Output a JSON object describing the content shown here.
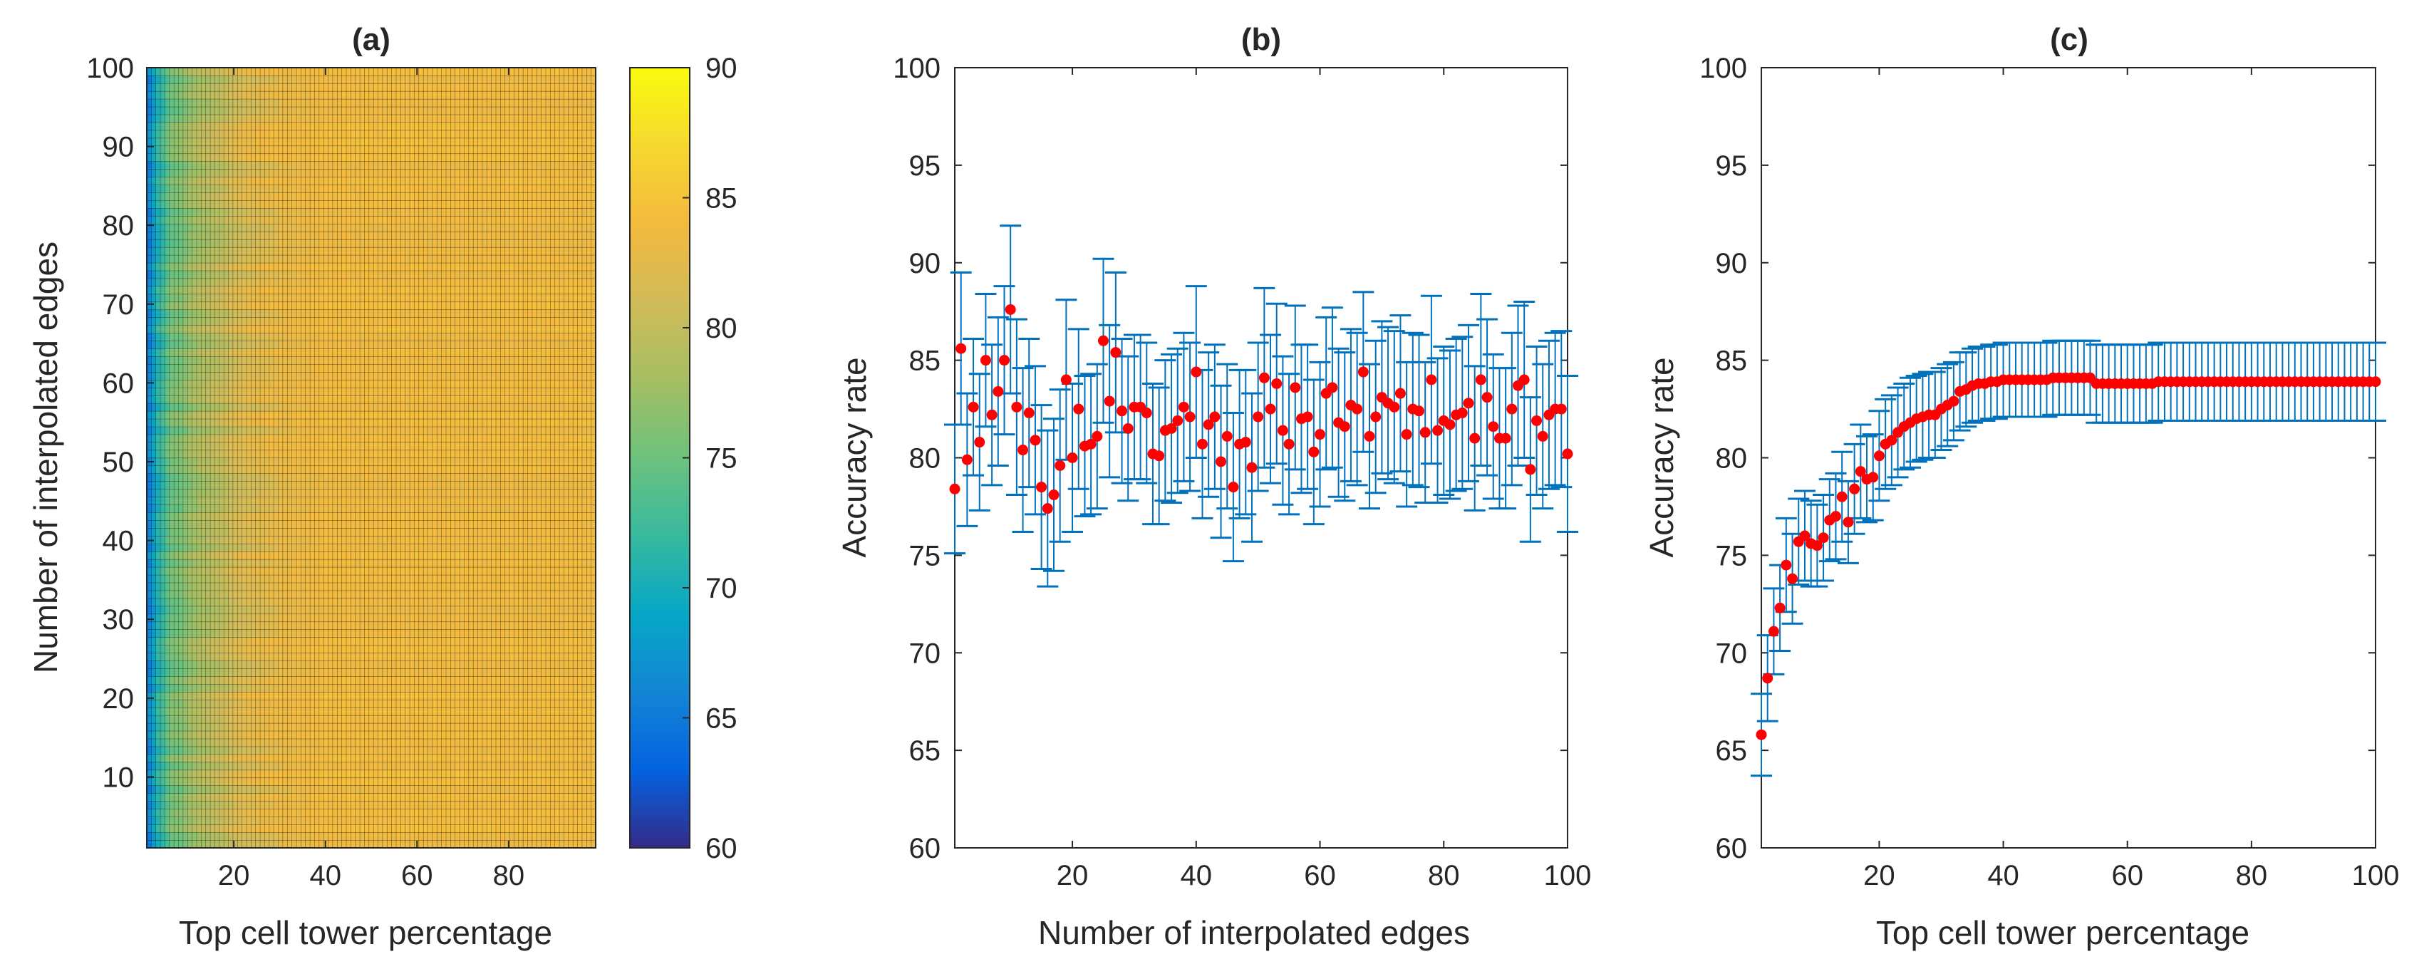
{
  "chart_data": [
    {
      "type": "heatmap",
      "title": "(a)",
      "xlabel": "Top cell tower percentage",
      "ylabel": "Number of interpolated edges",
      "xticks": [
        "20",
        "40",
        "60",
        "80"
      ],
      "yticks": [
        "10",
        "20",
        "30",
        "40",
        "50",
        "60",
        "70",
        "80",
        "90",
        "100"
      ],
      "xlim": [
        1,
        99
      ],
      "ylim": [
        1,
        100
      ],
      "colorbar": {
        "min": 60,
        "max": 90,
        "ticks": [
          "60",
          "65",
          "70",
          "75",
          "80",
          "85",
          "90"
        ],
        "colormap": "parula"
      },
      "x_profile": {
        "x": [
          1,
          2,
          3,
          4,
          5,
          6,
          8,
          10,
          12,
          15,
          18,
          20,
          25,
          30,
          35,
          40,
          50,
          99
        ],
        "value": [
          66,
          68.5,
          71,
          72,
          74,
          75.5,
          76,
          77.5,
          78.5,
          79.5,
          80.5,
          81.5,
          82.5,
          83.2,
          83.6,
          84,
          84,
          84
        ]
      }
    },
    {
      "type": "scatter",
      "title": "(b)",
      "xlabel": "Number of interpolated edges",
      "ylabel": "Accuracy rate",
      "xticks": [
        "20",
        "40",
        "60",
        "80",
        "100"
      ],
      "yticks": [
        "60",
        "65",
        "70",
        "75",
        "80",
        "85",
        "90",
        "95",
        "100"
      ],
      "xlim": [
        1,
        100
      ],
      "ylim": [
        60,
        100
      ],
      "error_bars": true,
      "marker_color": "#ff0000",
      "errorbar_color": "#0072bd",
      "x": [
        1,
        2,
        3,
        4,
        5,
        6,
        7,
        8,
        9,
        10,
        11,
        12,
        13,
        14,
        15,
        16,
        17,
        18,
        19,
        20,
        21,
        22,
        23,
        24,
        25,
        26,
        27,
        28,
        29,
        30,
        31,
        32,
        33,
        34,
        35,
        36,
        37,
        38,
        39,
        40,
        41,
        42,
        43,
        44,
        45,
        46,
        47,
        48,
        49,
        50,
        51,
        52,
        53,
        54,
        55,
        56,
        57,
        58,
        59,
        60,
        61,
        62,
        63,
        64,
        65,
        66,
        67,
        68,
        69,
        70,
        71,
        72,
        73,
        74,
        75,
        76,
        77,
        78,
        79,
        80,
        81,
        82,
        83,
        84,
        85,
        86,
        87,
        88,
        89,
        90,
        91,
        92,
        93,
        94,
        95,
        96,
        97,
        98,
        99,
        100
      ],
      "y": [
        78.4,
        85.6,
        79.9,
        82.6,
        80.8,
        85.0,
        82.2,
        83.4,
        85.0,
        87.6,
        82.6,
        80.4,
        82.3,
        80.9,
        78.5,
        77.4,
        78.1,
        79.6,
        84.0,
        80.0,
        82.5,
        80.6,
        80.7,
        81.1,
        86.0,
        82.9,
        85.4,
        82.4,
        81.5,
        82.6,
        82.6,
        82.3,
        80.2,
        80.1,
        81.4,
        81.5,
        81.9,
        82.6,
        82.1,
        84.4,
        80.7,
        81.7,
        82.1,
        79.8,
        81.1,
        78.5,
        80.7,
        80.8,
        79.5,
        82.1,
        84.1,
        82.5,
        83.8,
        81.4,
        80.7,
        83.6,
        82.0,
        82.1,
        80.3,
        81.2,
        83.3,
        83.6,
        81.8,
        81.6,
        82.7,
        82.5,
        84.4,
        81.1,
        82.1,
        83.1,
        82.8,
        82.6,
        83.3,
        81.2,
        82.5,
        82.4,
        81.3,
        84.0,
        81.4,
        81.9,
        81.7,
        82.2,
        82.3,
        82.8,
        81.0,
        84.0,
        83.1,
        81.6,
        81.0,
        81.0,
        82.5,
        83.7,
        84.0,
        79.4,
        81.9,
        81.1,
        82.2,
        82.5,
        82.5,
        80.2
      ],
      "err": [
        3.3,
        3.9,
        3.4,
        3.5,
        3.5,
        3.4,
        3.6,
        3.8,
        3.8,
        4.3,
        4.5,
        4.2,
        3.8,
        3.8,
        4.2,
        4.0,
        3.9,
        3.9,
        4.1,
        3.8,
        4.1,
        3.6,
        3.6,
        3.7,
        4.2,
        3.9,
        4.1,
        3.7,
        3.7,
        3.7,
        3.7,
        3.6,
        3.6,
        3.5,
        3.6,
        3.8,
        3.7,
        3.8,
        3.8,
        4.4,
        3.8,
        3.7,
        3.7,
        3.9,
        3.7,
        3.8,
        3.8,
        3.7,
        3.8,
        3.8,
        4.6,
        3.8,
        4.1,
        3.8,
        3.6,
        4.2,
        3.8,
        3.7,
        3.7,
        3.7,
        3.9,
        4.1,
        3.8,
        3.8,
        3.9,
        3.9,
        4.1,
        3.7,
        3.9,
        3.9,
        3.9,
        3.9,
        4.0,
        3.7,
        3.9,
        3.9,
        3.6,
        4.3,
        3.7,
        3.8,
        3.8,
        3.9,
        3.9,
        4.0,
        3.7,
        4.4,
        4.0,
        3.7,
        3.6,
        3.6,
        3.9,
        4.1,
        4.0,
        3.7,
        3.8,
        3.7,
        3.8,
        3.9,
        4.0,
        4.0
      ]
    },
    {
      "type": "scatter",
      "title": "(c)",
      "xlabel": "Top cell tower percentage",
      "ylabel": "Accuracy rate",
      "xticks": [
        "20",
        "40",
        "60",
        "80",
        "100"
      ],
      "yticks": [
        "60",
        "65",
        "70",
        "75",
        "80",
        "85",
        "90",
        "95",
        "100"
      ],
      "xlim": [
        1,
        100
      ],
      "ylim": [
        60,
        100
      ],
      "error_bars": true,
      "marker_color": "#ff0000",
      "errorbar_color": "#0072bd",
      "x": [
        1,
        2,
        3,
        4,
        5,
        6,
        7,
        8,
        9,
        10,
        11,
        12,
        13,
        14,
        15,
        16,
        17,
        18,
        19,
        20,
        21,
        22,
        23,
        24,
        25,
        26,
        27,
        28,
        29,
        30,
        31,
        32,
        33,
        34,
        35,
        36,
        37,
        38,
        39,
        40,
        41,
        42,
        43,
        44,
        45,
        46,
        47,
        48,
        49,
        50,
        51,
        52,
        53,
        54,
        55,
        56,
        57,
        58,
        59,
        60,
        61,
        62,
        63,
        64,
        65,
        66,
        67,
        68,
        69,
        70,
        71,
        72,
        73,
        74,
        75,
        76,
        77,
        78,
        79,
        80,
        81,
        82,
        83,
        84,
        85,
        86,
        87,
        88,
        89,
        90,
        91,
        92,
        93,
        94,
        95,
        96,
        97,
        98,
        99,
        100
      ],
      "y": [
        65.8,
        68.7,
        71.1,
        72.3,
        74.5,
        73.8,
        75.7,
        76.0,
        75.6,
        75.5,
        75.9,
        76.8,
        77.0,
        78.0,
        76.7,
        78.4,
        79.3,
        78.9,
        79.0,
        80.1,
        80.7,
        80.9,
        81.3,
        81.6,
        81.8,
        82.0,
        82.1,
        82.2,
        82.2,
        82.5,
        82.7,
        82.9,
        83.4,
        83.5,
        83.7,
        83.8,
        83.8,
        83.9,
        83.9,
        84.0,
        84.0,
        84.0,
        84.0,
        84.0,
        84.0,
        84.0,
        84.0,
        84.1,
        84.1,
        84.1,
        84.1,
        84.1,
        84.1,
        84.1,
        83.8,
        83.8,
        83.8,
        83.8,
        83.8,
        83.8,
        83.8,
        83.8,
        83.8,
        83.8,
        83.9,
        83.9,
        83.9,
        83.9,
        83.9,
        83.9,
        83.9,
        83.9,
        83.9,
        83.9,
        83.9,
        83.9,
        83.9,
        83.9,
        83.9,
        83.9,
        83.9,
        83.9,
        83.9,
        83.9,
        83.9,
        83.9,
        83.9,
        83.9,
        83.9,
        83.9,
        83.9,
        83.9,
        83.9,
        83.9,
        83.9,
        83.9,
        83.9,
        83.9,
        83.9,
        83.9
      ],
      "err": [
        2.1,
        2.2,
        2.2,
        2.2,
        2.4,
        2.3,
        2.2,
        2.3,
        2.2,
        2.1,
        2.2,
        2.1,
        2.2,
        2.3,
        2.1,
        2.3,
        2.4,
        2.2,
        2.2,
        2.3,
        2.3,
        2.3,
        2.3,
        2.2,
        2.3,
        2.2,
        2.2,
        2.2,
        2.2,
        2.1,
        2.1,
        2.0,
        2.0,
        1.9,
        1.9,
        1.9,
        1.9,
        1.9,
        1.9,
        1.9,
        1.9,
        1.9,
        1.9,
        1.9,
        1.9,
        1.9,
        1.9,
        1.9,
        1.9,
        1.9,
        1.9,
        1.9,
        1.9,
        1.9,
        2.0,
        2.0,
        2.0,
        2.0,
        2.0,
        2.0,
        2.0,
        2.0,
        2.0,
        2.0,
        2.0,
        2.0,
        2.0,
        2.0,
        2.0,
        2.0,
        2.0,
        2.0,
        2.0,
        2.0,
        2.0,
        2.0,
        2.0,
        2.0,
        2.0,
        2.0,
        2.0,
        2.0,
        2.0,
        2.0,
        2.0,
        2.0,
        2.0,
        2.0,
        2.0,
        2.0,
        2.0,
        2.0,
        2.0,
        2.0,
        2.0,
        2.0,
        2.0,
        2.0,
        2.0,
        2.0
      ]
    }
  ]
}
